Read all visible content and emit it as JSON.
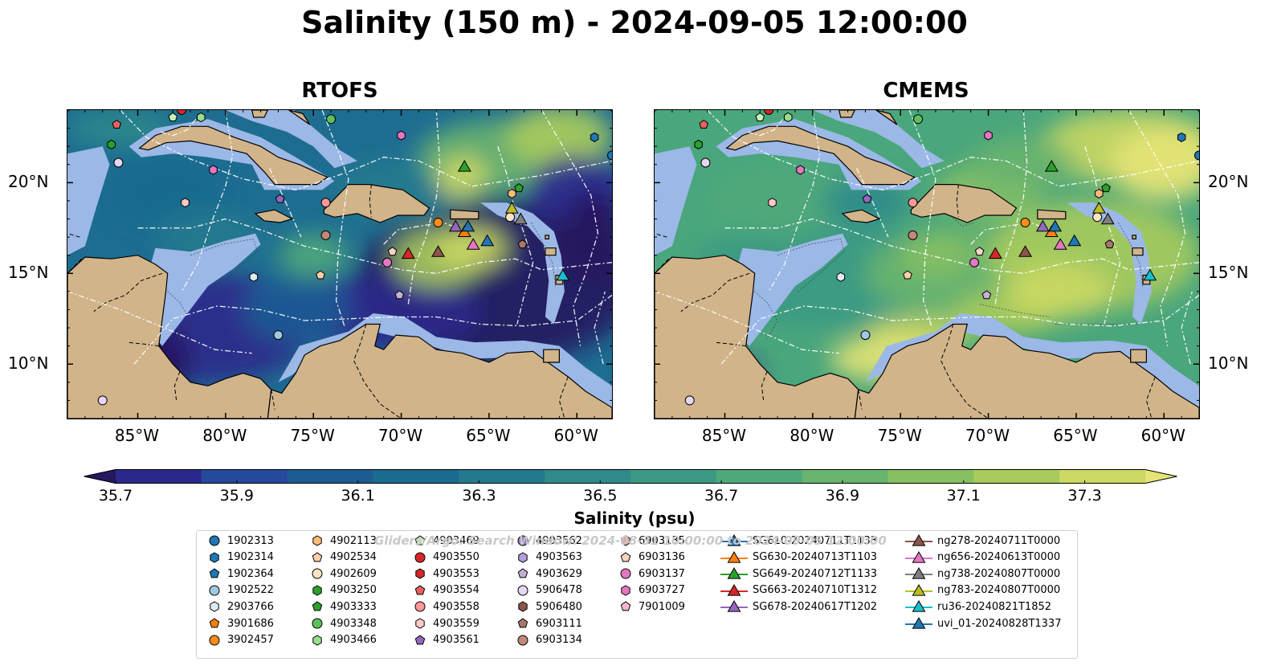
{
  "title": "Salinity (150 m) - 2024-09-05 12:00:00",
  "panels": [
    {
      "title": "RTOFS",
      "x_ticks": [
        "85°W",
        "80°W",
        "75°W",
        "70°W",
        "65°W",
        "60°W"
      ],
      "y_ticks": [
        "20°N",
        "15°N",
        "10°N"
      ]
    },
    {
      "title": "CMEMS",
      "x_ticks": [
        "85°W",
        "80°W",
        "75°W",
        "70°W",
        "65°W",
        "60°W"
      ],
      "y_ticks": [
        "20°N",
        "15°N",
        "10°N"
      ]
    }
  ],
  "map_extent": {
    "lon": [
      -89,
      -58
    ],
    "lat": [
      7,
      24
    ]
  },
  "colorbar": {
    "label": "Salinity (psu)",
    "range": [
      35.7,
      37.4
    ],
    "ticks": [
      "35.7",
      "35.9",
      "36.1",
      "36.3",
      "36.5",
      "36.7",
      "36.9",
      "37.1",
      "37.3"
    ],
    "colors": [
      "#26185e",
      "#2b2a8c",
      "#25499b",
      "#1d5c93",
      "#1a6b8f",
      "#237a8e",
      "#2f8a8b",
      "#3c9a84",
      "#4fa87a",
      "#69b46e",
      "#86c063",
      "#a8cb5c",
      "#cbd863",
      "#e7e477"
    ]
  },
  "colors": {
    "land": "#d2b48a",
    "shelf": "#9bb8e6",
    "coast": "#000000",
    "eez": "#ffffff"
  },
  "legend": {
    "watermark": "Gliders/Argo: Search Window: 2024-08-31 10:00:00 to 2024-09-05 12:00:00",
    "items": [
      {
        "label": "1902313",
        "marker": "circle",
        "color": "#1f77b4"
      },
      {
        "label": "1902314",
        "marker": "hexagon",
        "color": "#1f77b4"
      },
      {
        "label": "1902364",
        "marker": "pentagon",
        "color": "#1f77b4"
      },
      {
        "label": "1902522",
        "marker": "circle",
        "color": "#9ecae1"
      },
      {
        "label": "2903766",
        "marker": "hexagon",
        "color": "#deebf7"
      },
      {
        "label": "3901686",
        "marker": "pentagon",
        "color": "#ff7f0e"
      },
      {
        "label": "3902457",
        "marker": "circle",
        "color": "#ff8c1a"
      },
      {
        "label": "4902113",
        "marker": "hexagon",
        "color": "#ffbb78"
      },
      {
        "label": "4902534",
        "marker": "pentagon",
        "color": "#ffd1a8"
      },
      {
        "label": "4902609",
        "marker": "circle",
        "color": "#ffe4c4"
      },
      {
        "label": "4903250",
        "marker": "hexagon",
        "color": "#2ca02c"
      },
      {
        "label": "4903333",
        "marker": "pentagon",
        "color": "#2ca02c"
      },
      {
        "label": "4903348",
        "marker": "circle",
        "color": "#5cc15c"
      },
      {
        "label": "4903466",
        "marker": "hexagon",
        "color": "#98df8a"
      },
      {
        "label": "4903469",
        "marker": "pentagon",
        "color": "#c7f2b8"
      },
      {
        "label": "4903550",
        "marker": "circle",
        "color": "#d62728"
      },
      {
        "label": "4903553",
        "marker": "hexagon",
        "color": "#d62728"
      },
      {
        "label": "4903554",
        "marker": "pentagon",
        "color": "#e8615f"
      },
      {
        "label": "4903558",
        "marker": "circle",
        "color": "#ff9896"
      },
      {
        "label": "4903559",
        "marker": "hexagon",
        "color": "#ffc9c7"
      },
      {
        "label": "4903561",
        "marker": "pentagon",
        "color": "#9467bd"
      },
      {
        "label": "4903562",
        "marker": "circle",
        "color": "#9a7cc7"
      },
      {
        "label": "4903563",
        "marker": "hexagon",
        "color": "#b39ddb"
      },
      {
        "label": "4903629",
        "marker": "pentagon",
        "color": "#c5b0d5"
      },
      {
        "label": "5906478",
        "marker": "circle",
        "color": "#e6d6f2"
      },
      {
        "label": "5906480",
        "marker": "hexagon",
        "color": "#8c564b"
      },
      {
        "label": "6903111",
        "marker": "pentagon",
        "color": "#a9766b"
      },
      {
        "label": "6903134",
        "marker": "circle",
        "color": "#c4877a"
      },
      {
        "label": "6903135",
        "marker": "hexagon",
        "color": "#e0a897"
      },
      {
        "label": "6903136",
        "marker": "pentagon",
        "color": "#f7d3c4"
      },
      {
        "label": "6903137",
        "marker": "circle",
        "color": "#e377c2"
      },
      {
        "label": "6903727",
        "marker": "hexagon",
        "color": "#e377c2"
      },
      {
        "label": "7901009",
        "marker": "pentagon",
        "color": "#f7b6d2"
      },
      {
        "label": "SG610-20240711T1133",
        "marker": "triangle",
        "color": "#1f77b4",
        "line": true
      },
      {
        "label": "SG630-20240713T1103",
        "marker": "triangle",
        "color": "#ff7f0e",
        "line": true
      },
      {
        "label": "SG649-20240712T1133",
        "marker": "triangle",
        "color": "#2ca02c",
        "line": true
      },
      {
        "label": "SG663-20240710T1312",
        "marker": "triangle",
        "color": "#d62728",
        "line": true
      },
      {
        "label": "SG678-20240617T1202",
        "marker": "triangle",
        "color": "#9467bd",
        "line": true
      },
      {
        "label": "ng278-20240711T0000",
        "marker": "triangle",
        "color": "#8c564b",
        "line": true
      },
      {
        "label": "ng656-20240613T0000",
        "marker": "triangle",
        "color": "#e377c2",
        "line": true
      },
      {
        "label": "ng738-20240807T0000",
        "marker": "triangle",
        "color": "#7f7f7f",
        "line": true
      },
      {
        "label": "ng783-20240807T0000",
        "marker": "triangle",
        "color": "#bcbd22",
        "line": true
      },
      {
        "label": "ru36-20240821T1852",
        "marker": "triangle",
        "color": "#17becf",
        "line": true
      },
      {
        "label": "uvi_01-20240828T1337",
        "marker": "triangle",
        "color": "#1f77b4",
        "line": true
      }
    ]
  },
  "markers": [
    {
      "id": "4903550",
      "lon": -82.5,
      "lat": 24.0
    },
    {
      "id": "4903554",
      "lon": -86.2,
      "lat": 23.2
    },
    {
      "id": "4903469",
      "lon": -83.0,
      "lat": 23.6
    },
    {
      "id": "4903466",
      "lon": -81.4,
      "lat": 23.6
    },
    {
      "id": "4903250",
      "lon": -86.5,
      "lat": 22.1
    },
    {
      "id": "5906478",
      "lon": -86.1,
      "lat": 21.1
    },
    {
      "id": "6903727",
      "lon": -80.7,
      "lat": 20.7
    },
    {
      "id": "4903348",
      "lon": -74.0,
      "lat": 23.5
    },
    {
      "id": "6903727",
      "lon": -70.0,
      "lat": 22.6
    },
    {
      "id": "1902314",
      "lon": -59.0,
      "lat": 22.5
    },
    {
      "id": "1902313",
      "lon": -58.0,
      "lat": 21.5
    },
    {
      "id": "4903561",
      "lon": -76.9,
      "lat": 19.1
    },
    {
      "id": "4903559",
      "lon": -82.3,
      "lat": 18.9
    },
    {
      "id": "4903558",
      "lon": -74.3,
      "lat": 18.9
    },
    {
      "id": "6903134",
      "lon": -74.3,
      "lat": 17.1
    },
    {
      "id": "3902457",
      "lon": -67.9,
      "lat": 17.8
    },
    {
      "id": "4902113",
      "lon": -63.7,
      "lat": 19.4
    },
    {
      "id": "4903333",
      "lon": -63.3,
      "lat": 19.7
    },
    {
      "id": "6903136",
      "lon": -70.5,
      "lat": 16.2
    },
    {
      "id": "6903137",
      "lon": -70.8,
      "lat": 15.6
    },
    {
      "id": "4902534",
      "lon": -74.6,
      "lat": 14.9
    },
    {
      "id": "2903766",
      "lon": -78.4,
      "lat": 14.8
    },
    {
      "id": "4903629",
      "lon": -70.1,
      "lat": 13.8
    },
    {
      "id": "1902522",
      "lon": -77.0,
      "lat": 11.6
    },
    {
      "id": "5906478",
      "lon": -87.0,
      "lat": 8.0
    },
    {
      "id": "6903111",
      "lon": -63.1,
      "lat": 16.6
    },
    {
      "id": "4902609",
      "lon": -63.8,
      "lat": 18.1
    },
    {
      "id": "SG649-20240712T1133",
      "lon": -66.4,
      "lat": 20.9
    },
    {
      "id": "SG663-20240710T1312",
      "lon": -69.6,
      "lat": 16.1
    },
    {
      "id": "ng278-20240711T0000",
      "lon": -67.9,
      "lat": 16.2
    },
    {
      "id": "SG678-20240617T1202",
      "lon": -66.9,
      "lat": 17.6
    },
    {
      "id": "SG630-20240713T1103",
      "lon": -66.4,
      "lat": 17.3
    },
    {
      "id": "SG610-20240711T1133",
      "lon": -66.2,
      "lat": 17.6
    },
    {
      "id": "ng656-20240613T0000",
      "lon": -65.9,
      "lat": 16.6
    },
    {
      "id": "uvi_01-20240828T1337",
      "lon": -65.1,
      "lat": 16.8
    },
    {
      "id": "ng783-20240807T0000",
      "lon": -63.7,
      "lat": 18.6
    },
    {
      "id": "ng738-20240807T0000",
      "lon": -63.2,
      "lat": 18.0
    },
    {
      "id": "ru36-20240821T1852",
      "lon": -60.8,
      "lat": 14.9
    }
  ]
}
